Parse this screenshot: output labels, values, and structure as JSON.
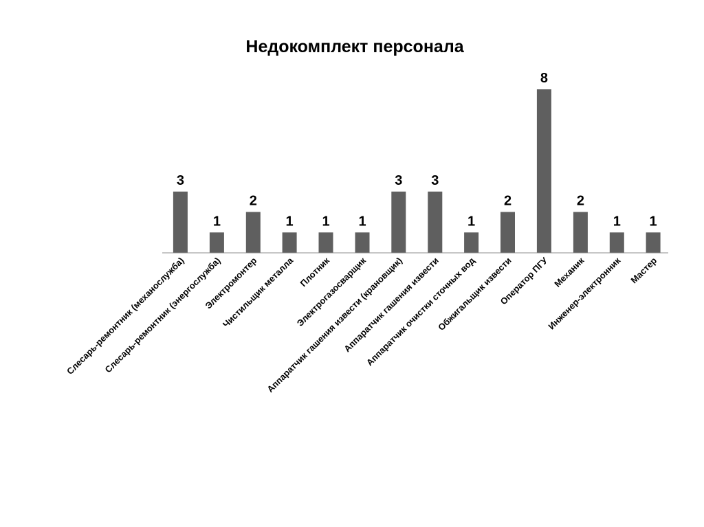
{
  "chart_data": {
    "type": "bar",
    "title": "Недокомплект персонала",
    "xlabel": "",
    "ylabel": "",
    "ylim": [
      0,
      8
    ],
    "grid": false,
    "legend": "none",
    "categories": [
      "Слесарь-ремонтник (механослужба)",
      "Слесарь-ремонтник (энергослужба)",
      "Электромонтер",
      "Чистильщик металла",
      "Плотник",
      "Электрогазосварщик",
      "Аппаратчик гашения извести (крановщик)",
      "Аппаратчик гашения извести",
      "Аппаратчик очистки сточных вод",
      "Обжигальщик извести",
      "Оператор ПГУ",
      "Механик",
      "Инженер-электронник",
      "Мастер"
    ],
    "values": [
      3,
      1,
      2,
      1,
      1,
      1,
      3,
      3,
      1,
      2,
      8,
      2,
      1,
      1
    ],
    "colors": {
      "bar": "#5f5f5f",
      "axis": "#8c8c8c",
      "text": "#000000"
    }
  }
}
